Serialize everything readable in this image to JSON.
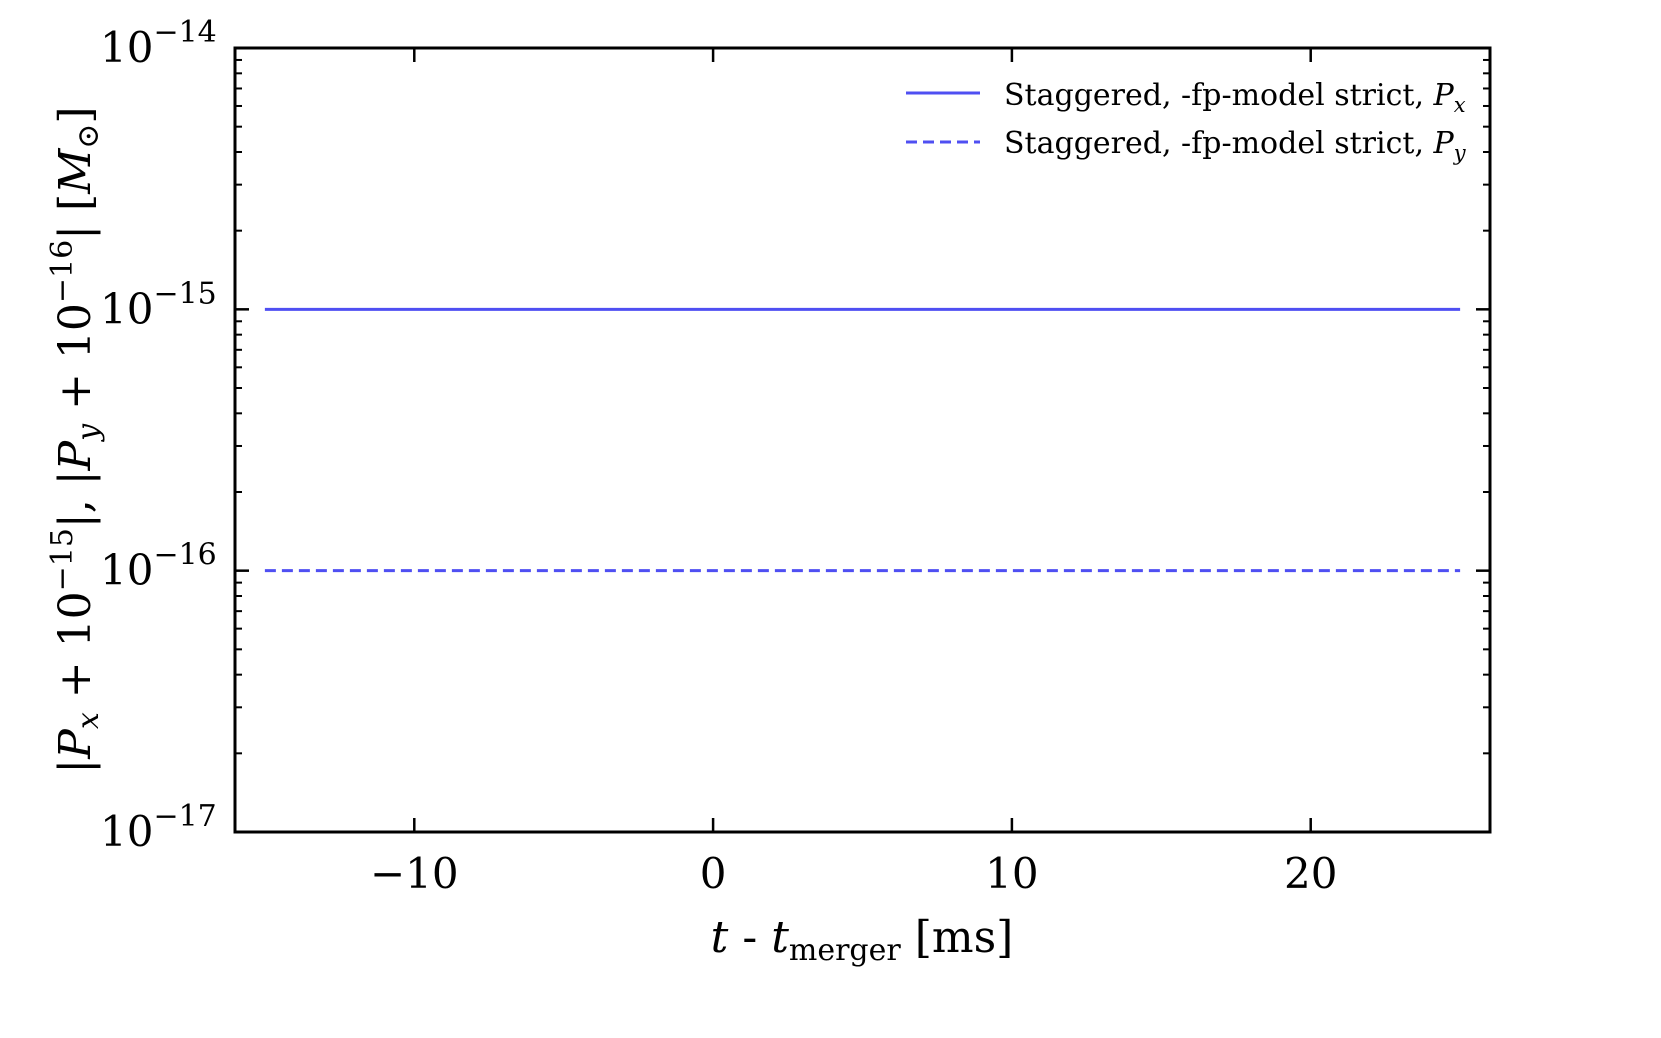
{
  "chart_data": {
    "type": "line",
    "xlim": [
      -16,
      26
    ],
    "ylim_log10": [
      -17,
      -14
    ],
    "y_scale": "log",
    "x_ticks": [
      -10,
      0,
      10,
      20
    ],
    "x_tick_labels": [
      "−10",
      "0",
      "10",
      "20"
    ],
    "y_ticks_exp": [
      -17,
      -16,
      -15,
      -14
    ],
    "y_tick_base": "10",
    "y_tick_exponents": [
      "−17",
      "−16",
      "−15",
      "−14"
    ],
    "xlabel": {
      "t": "t",
      "sep": " - ",
      "t2": "t",
      "sub": "merger",
      "unit": " [ms]"
    },
    "ylabel": {
      "p1": "|",
      "P1": "P",
      "sub1": "x",
      "mid1": " + 10",
      "exp1": "−15",
      "p2": "|, |",
      "P2": "P",
      "sub2": "y",
      "mid2": " + 10",
      "exp2": "−16",
      "p3": "| [",
      "M": "M",
      "sun": "⊙",
      "p4": "]"
    },
    "legend_position": "top-right",
    "series": [
      {
        "name": "Staggered, -fp-model strict, ",
        "name_symbol": "P",
        "name_sub": "x",
        "style": "solid",
        "color": "#4f4ff2",
        "x": [
          -15,
          25
        ],
        "y_exp": [
          -15,
          -15
        ]
      },
      {
        "name": "Staggered, -fp-model strict, ",
        "name_symbol": "P",
        "name_sub": "y",
        "style": "dashed",
        "color": "#4f4ff2",
        "x": [
          -15,
          25
        ],
        "y_exp": [
          -16,
          -16
        ]
      }
    ]
  }
}
